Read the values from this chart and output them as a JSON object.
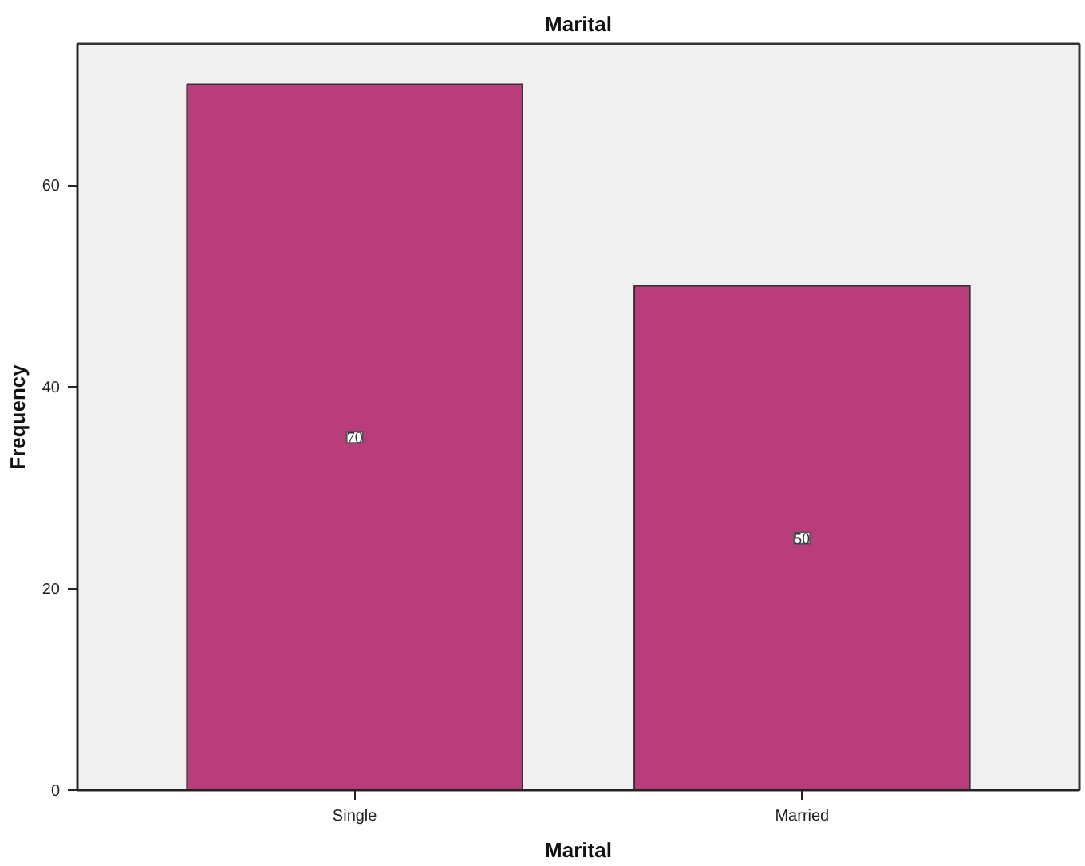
{
  "chart_data": {
    "type": "bar",
    "title": "Marital",
    "xlabel": "Marital",
    "ylabel": "Frequency",
    "categories": [
      "Single",
      "Married"
    ],
    "values": [
      70,
      50
    ],
    "color": "#b93d7a",
    "ylim": [
      0,
      74
    ],
    "yticks": [
      0,
      20,
      40,
      60
    ],
    "data_labels": true
  }
}
